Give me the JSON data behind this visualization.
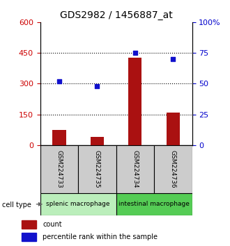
{
  "title": "GDS2982 / 1456887_at",
  "samples": [
    "GSM224733",
    "GSM224735",
    "GSM224734",
    "GSM224736"
  ],
  "counts": [
    75,
    40,
    425,
    160
  ],
  "percentiles": [
    52,
    48,
    75,
    70
  ],
  "left_ylim": [
    0,
    600
  ],
  "right_ylim": [
    0,
    100
  ],
  "left_yticks": [
    0,
    150,
    300,
    450,
    600
  ],
  "right_yticks": [
    0,
    25,
    50,
    75,
    100
  ],
  "bar_color": "#aa1111",
  "scatter_color": "#1111cc",
  "groups": [
    {
      "label": "splenic macrophage",
      "indices": [
        0,
        1
      ],
      "color": "#bbeebb"
    },
    {
      "label": "intestinal macrophage",
      "indices": [
        2,
        3
      ],
      "color": "#55cc55"
    }
  ],
  "cell_type_label": "cell type",
  "legend_count": "count",
  "legend_pct": "percentile rank within the sample",
  "dotted_gridlines": [
    150,
    300,
    450
  ],
  "title_fontsize": 10,
  "tick_fontsize": 8,
  "left_tick_color": "#cc0000",
  "right_tick_color": "#0000cc",
  "sample_box_color": "#cccccc",
  "bar_width": 0.35
}
